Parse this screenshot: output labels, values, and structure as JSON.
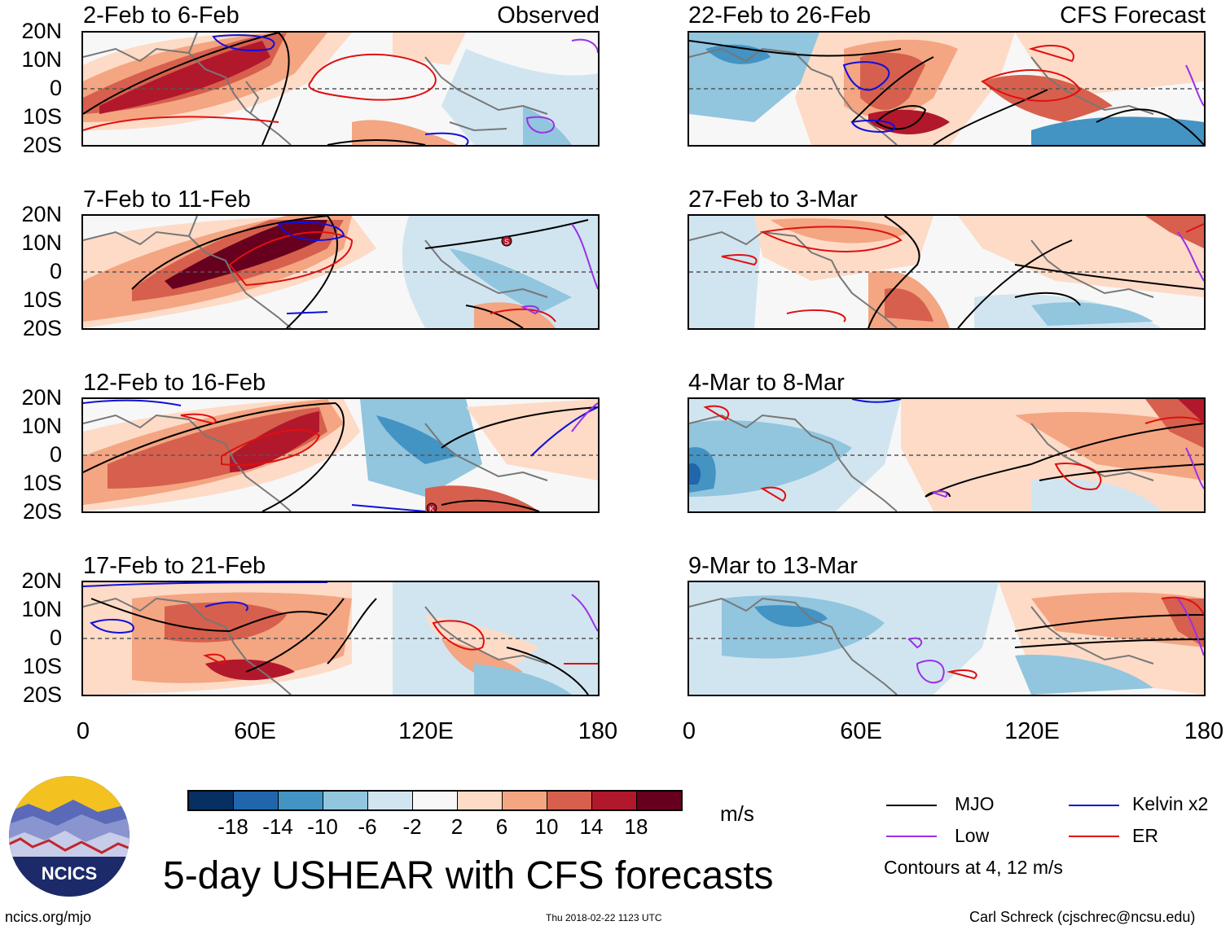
{
  "panels": {
    "obs1": {
      "title": "2-Feb to 6-Feb",
      "tag": "Observed"
    },
    "obs2": {
      "title": "7-Feb to 11-Feb"
    },
    "obs3": {
      "title": "12-Feb to 16-Feb"
    },
    "obs4": {
      "title": "17-Feb to 21-Feb"
    },
    "fc1": {
      "title": "22-Feb to 26-Feb",
      "tag": "CFS Forecast"
    },
    "fc2": {
      "title": "27-Feb to 3-Mar"
    },
    "fc3": {
      "title": "4-Mar to 8-Mar"
    },
    "fc4": {
      "title": "9-Mar to 13-Mar"
    }
  },
  "axes": {
    "lat_labels": [
      "20N",
      "10N",
      "0",
      "10S",
      "20S"
    ],
    "lon_labels": [
      "0",
      "60E",
      "120E",
      "180"
    ]
  },
  "storm_markers": {
    "s": "S",
    "k": "K"
  },
  "colorbar": {
    "colors": [
      "#053061",
      "#2166ac",
      "#4393c3",
      "#92c5de",
      "#d1e5f0",
      "#f7f7f7",
      "#fddbc7",
      "#f4a582",
      "#d6604d",
      "#b2182b",
      "#67001f"
    ],
    "labels": [
      "-18",
      "-14",
      "-10",
      "-6",
      "-2",
      "2",
      "6",
      "10",
      "14",
      "18"
    ],
    "units": "m/s"
  },
  "legend": {
    "mjo": {
      "label": "MJO",
      "color": "#000000"
    },
    "kelvin": {
      "label": "Kelvin x2",
      "color": "#1010dd"
    },
    "low": {
      "label": "Low",
      "color": "#9b30e6"
    },
    "er": {
      "label": "ER",
      "color": "#e01010"
    },
    "contours": "Contours at 4, 12 m/s"
  },
  "logo": {
    "text": "NCICS"
  },
  "footer": {
    "title": "5-day USHEAR with CFS forecasts",
    "left": "ncics.org/mjo",
    "center": "Thu 2018-02-22 1123 UTC",
    "right": "Carl Schreck (cjschrec@ncsu.edu)"
  }
}
